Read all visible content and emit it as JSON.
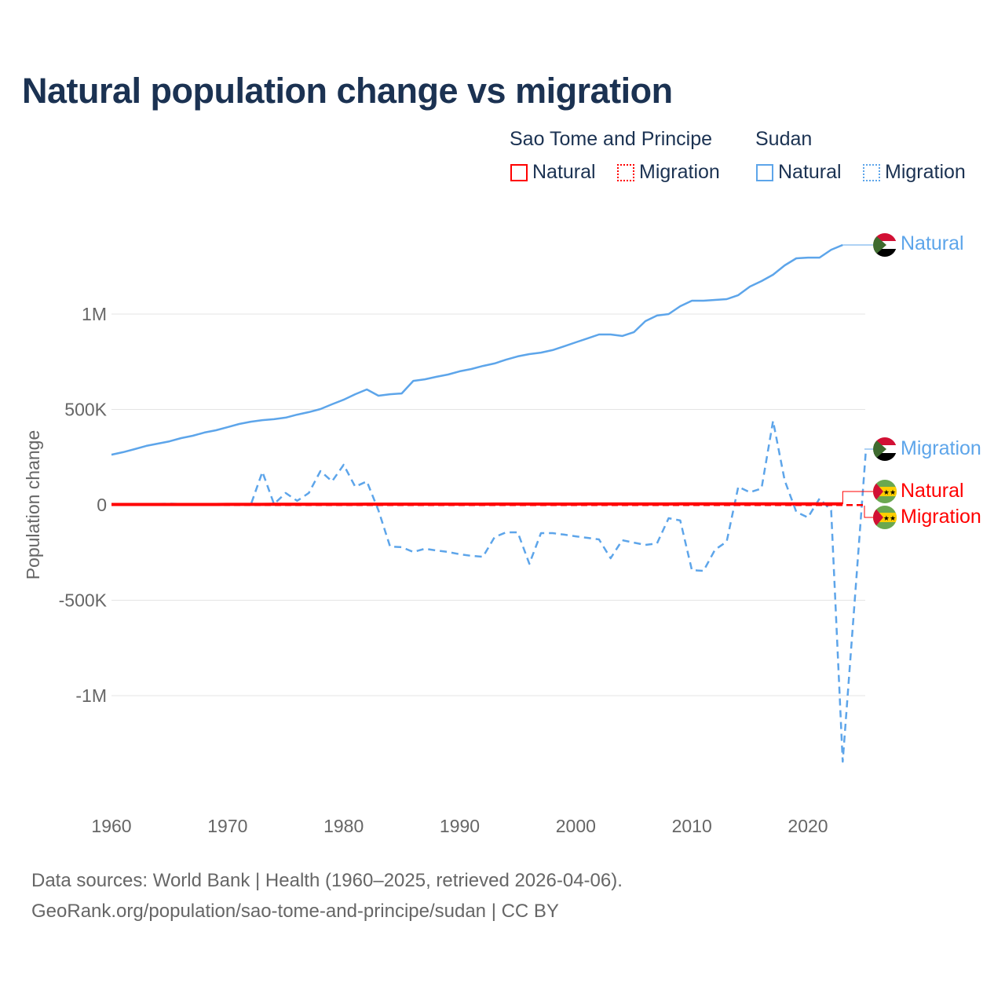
{
  "title": "Natural population change vs migration",
  "legend": {
    "groups": [
      {
        "name": "Sao Tome and Principe",
        "items": [
          "Natural",
          "Migration"
        ],
        "color": "#ff0000"
      },
      {
        "name": "Sudan",
        "items": [
          "Natural",
          "Migration"
        ],
        "color": "#5da5ea"
      }
    ]
  },
  "footer": {
    "line1": "Data sources: World Bank | Health (1960–2025, retrieved 2026-04-06).",
    "line2": "GeoRank.org/population/sao-tome-and-principe/sudan | CC BY"
  },
  "chart_data": {
    "type": "line",
    "title": "Natural population change vs migration",
    "ylabel": "Population change",
    "xlabel": "",
    "xlim": [
      1960,
      2025
    ],
    "ylim": [
      -1400000,
      1500000
    ],
    "x_ticks": [
      1960,
      1970,
      1980,
      1990,
      2000,
      2010,
      2020
    ],
    "x_tick_labels": [
      "1960",
      "1970",
      "1980",
      "1990",
      "2000",
      "2010",
      "2020"
    ],
    "y_ticks": [
      1000000,
      500000,
      0,
      -500000,
      -1000000
    ],
    "y_tick_labels": [
      "1M",
      "500K",
      "0",
      "-500K",
      "-1M"
    ],
    "grid": true,
    "series": [
      {
        "name": "Sudan Natural",
        "label": "Natural",
        "country": "Sudan",
        "color": "#5da5ea",
        "dash": "solid",
        "start": 1960,
        "values": [
          263000,
          276000,
          292000,
          309000,
          321000,
          333000,
          350000,
          362000,
          379000,
          391000,
          407000,
          424000,
          436000,
          444000,
          449000,
          457000,
          473000,
          486000,
          502000,
          527000,
          551000,
          580000,
          605000,
          572000,
          580000,
          584000,
          650000,
          658000,
          671000,
          683000,
          700000,
          712000,
          728000,
          741000,
          761000,
          778000,
          790000,
          798000,
          811000,
          831000,
          852000,
          872000,
          893000,
          893000,
          885000,
          905000,
          963000,
          992000,
          1000000,
          1041000,
          1070000,
          1070000,
          1074000,
          1078000,
          1099000,
          1144000,
          1173000,
          1206000,
          1255000,
          1292000,
          1296000,
          1296000,
          1337000,
          1362000
        ]
      },
      {
        "name": "Sudan Migration",
        "label": "Migration",
        "country": "Sudan",
        "color": "#5da5ea",
        "dash": "dashed",
        "start": 1960,
        "values": [
          5000,
          5000,
          5000,
          5000,
          5000,
          6000,
          5000,
          5000,
          5000,
          5000,
          5000,
          4000,
          0,
          173000,
          4000,
          62000,
          21000,
          62000,
          177000,
          123000,
          210000,
          95000,
          123000,
          -29000,
          -218000,
          -222000,
          -247000,
          -230000,
          -239000,
          -247000,
          -259000,
          -267000,
          -272000,
          -169000,
          -144000,
          -144000,
          -309000,
          -148000,
          -148000,
          -156000,
          -165000,
          -173000,
          -181000,
          -280000,
          -185000,
          -198000,
          -210000,
          -202000,
          -70000,
          -82000,
          -342000,
          -346000,
          -235000,
          -193000,
          95000,
          66000,
          86000,
          440000,
          128000,
          -37000,
          -66000,
          33000,
          -29000,
          -1346000,
          -530000,
          290000
        ]
      },
      {
        "name": "Sao Tome and Principe Natural",
        "label": "Natural",
        "country": "Sao Tome and Principe",
        "color": "#ff0000",
        "dash": "solid",
        "start": 1960,
        "values": [
          2000,
          2000,
          2000,
          2000,
          2000,
          2000,
          2000,
          2000,
          2100,
          2200,
          2300,
          2400,
          2500,
          2600,
          2700,
          2800,
          2900,
          3000,
          3100,
          3200,
          3300,
          3400,
          3500,
          3500,
          3500,
          3600,
          3600,
          3700,
          3700,
          3800,
          3800,
          3900,
          3900,
          4000,
          4000,
          4100,
          4100,
          4200,
          4200,
          4300,
          4300,
          4400,
          4400,
          4500,
          4500,
          4600,
          4600,
          4700,
          4700,
          4800,
          4800,
          4900,
          4900,
          5000,
          5000,
          5100,
          5100,
          5200,
          5200,
          5300,
          5300,
          5400,
          5400,
          5500
        ]
      },
      {
        "name": "Sao Tome and Principe Migration",
        "label": "Migration",
        "country": "Sao Tome and Principe",
        "color": "#ff0000",
        "dash": "dashed",
        "start": 1960,
        "values": [
          -1000,
          -1000,
          -1000,
          -1000,
          -1000,
          -1000,
          -1000,
          -1000,
          -1000,
          -1000,
          -1000,
          -1000,
          -1000,
          -1000,
          -1000,
          -1000,
          -1000,
          -1000,
          -1000,
          -1000,
          -1000,
          -1000,
          -1000,
          -1000,
          -1000,
          -1000,
          -1000,
          -1000,
          -1000,
          -1000,
          -1000,
          -1000,
          -1000,
          -1000,
          -1000,
          -1000,
          -1000,
          -1000,
          -1000,
          -1000,
          -1000,
          -1000,
          -1000,
          -1000,
          -1000,
          -1000,
          -1000,
          -1000,
          -1000,
          -1000,
          -1000,
          -1000,
          -1000,
          -1000,
          -1000,
          -1000,
          -1000,
          -1000,
          -1000,
          -1000,
          -1000,
          -1000,
          -1000,
          -1000,
          -1000,
          -1000
        ]
      }
    ]
  }
}
